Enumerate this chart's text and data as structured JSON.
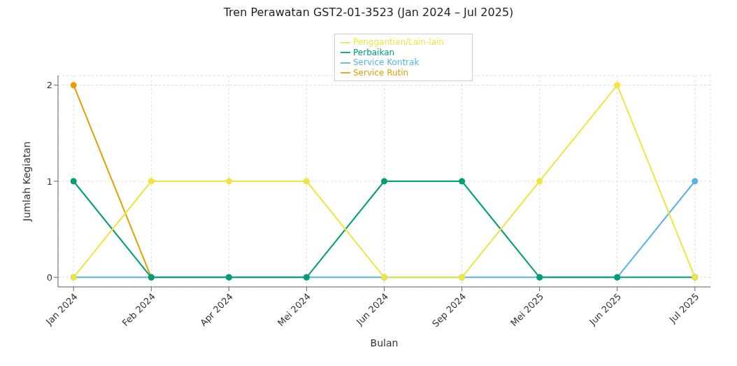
{
  "chart_data": {
    "type": "line",
    "title": "Tren Perawatan GST2-01-3523 (Jan 2024 – Jul 2025)",
    "xlabel": "Bulan",
    "ylabel": "Jumlah Kegiatan",
    "categories": [
      "Jan 2024",
      "Feb 2024",
      "Apr 2024",
      "Mei 2024",
      "Jun 2024",
      "Sep 2024",
      "Mei 2025",
      "Jun 2025",
      "Jul 2025"
    ],
    "series": [
      {
        "name": "Service Rutin",
        "color": "#e69f00",
        "values": [
          2,
          0,
          null,
          null,
          null,
          null,
          null,
          null,
          null
        ]
      },
      {
        "name": "Service Kontrak",
        "color": "#56b4e9",
        "values": [
          0,
          0,
          0,
          0,
          0,
          0,
          0,
          0,
          1
        ]
      },
      {
        "name": "Perbaikan",
        "color": "#009e73",
        "values": [
          1,
          0,
          0,
          0,
          1,
          1,
          0,
          0,
          0
        ]
      },
      {
        "name": "Penggantian/Lain-lain",
        "color": "#f0e442",
        "values": [
          0,
          1,
          1,
          1,
          0,
          0,
          1,
          2,
          0
        ]
      }
    ],
    "ylim": [
      -0.1,
      2.1
    ],
    "yticks": [
      0,
      1,
      2
    ],
    "grid": true,
    "legend": "top",
    "marker": "circle",
    "line_style": "solid"
  }
}
